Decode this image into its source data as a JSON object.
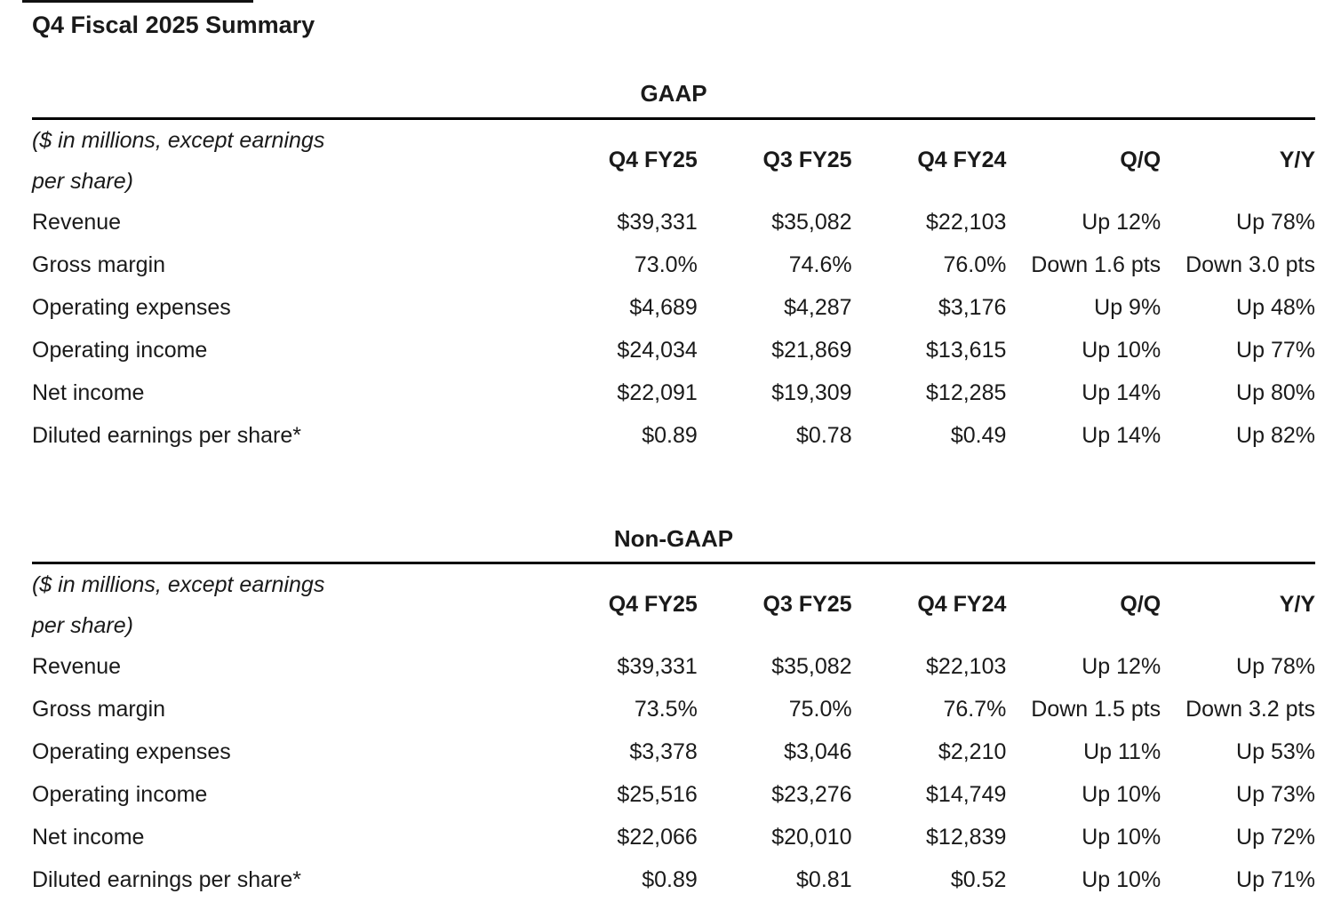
{
  "page": {
    "title": "Q4 Fiscal 2025 Summary"
  },
  "colors": {
    "background": "#ffffff",
    "text": "#1a1a1a",
    "rule": "#000000"
  },
  "tables": [
    {
      "section_label": "GAAP",
      "unit_note_line1": "($ in millions, except earnings",
      "unit_note_line2": "per share)",
      "columns": [
        "Q4 FY25",
        "Q3 FY25",
        "Q4 FY24",
        "Q/Q",
        "Y/Y"
      ],
      "rows": [
        {
          "label": "Revenue",
          "values": [
            "$39,331",
            "$35,082",
            "$22,103",
            "Up 12%",
            "Up 78%"
          ]
        },
        {
          "label": "Gross margin",
          "values": [
            "73.0%",
            "74.6%",
            "76.0%",
            "Down 1.6 pts",
            "Down 3.0 pts"
          ]
        },
        {
          "label": "Operating expenses",
          "values": [
            "$4,689",
            "$4,287",
            "$3,176",
            "Up 9%",
            "Up 48%"
          ]
        },
        {
          "label": "Operating income",
          "values": [
            "$24,034",
            "$21,869",
            "$13,615",
            "Up 10%",
            "Up 77%"
          ]
        },
        {
          "label": "Net income",
          "values": [
            "$22,091",
            "$19,309",
            "$12,285",
            "Up 14%",
            "Up 80%"
          ]
        },
        {
          "label": "Diluted earnings per share*",
          "values": [
            "$0.89",
            "$0.78",
            "$0.49",
            "Up 14%",
            "Up 82%"
          ]
        }
      ]
    },
    {
      "section_label": "Non-GAAP",
      "unit_note_line1": "($ in millions, except earnings",
      "unit_note_line2": "per share)",
      "columns": [
        "Q4 FY25",
        "Q3 FY25",
        "Q4 FY24",
        "Q/Q",
        "Y/Y"
      ],
      "rows": [
        {
          "label": "Revenue",
          "values": [
            "$39,331",
            "$35,082",
            "$22,103",
            "Up 12%",
            "Up 78%"
          ]
        },
        {
          "label": "Gross margin",
          "values": [
            "73.5%",
            "75.0%",
            "76.7%",
            "Down 1.5 pts",
            "Down 3.2 pts"
          ]
        },
        {
          "label": "Operating expenses",
          "values": [
            "$3,378",
            "$3,046",
            "$2,210",
            "Up 11%",
            "Up 53%"
          ]
        },
        {
          "label": "Operating income",
          "values": [
            "$25,516",
            "$23,276",
            "$14,749",
            "Up 10%",
            "Up 73%"
          ]
        },
        {
          "label": "Net income",
          "values": [
            "$22,066",
            "$20,010",
            "$12,839",
            "Up 10%",
            "Up 72%"
          ]
        },
        {
          "label": "Diluted earnings per share*",
          "values": [
            "$0.89",
            "$0.81",
            "$0.52",
            "Up 10%",
            "Up 71%"
          ]
        }
      ]
    }
  ]
}
